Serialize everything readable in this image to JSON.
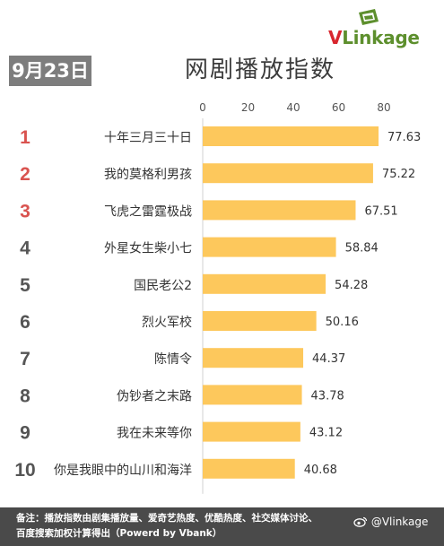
{
  "logo": {
    "text_v": "V",
    "text_rest": "Linkage",
    "mark_color": "#5d8f2d",
    "accent_color": "#d8262e"
  },
  "date": "9月23日",
  "title": "网剧播放指数",
  "chart_data": {
    "type": "bar",
    "orientation": "horizontal",
    "title": "网剧播放指数",
    "xlim": [
      0,
      80
    ],
    "ticks": [
      0,
      20,
      40,
      60,
      80
    ],
    "grid": false,
    "bar_color": "#fdc85c",
    "rank_colors": {
      "top3": "#d9534f",
      "others": "#555555"
    },
    "ranks": [
      1,
      2,
      3,
      4,
      5,
      6,
      7,
      8,
      9,
      10
    ],
    "categories": [
      "十年三月三十日",
      "我的莫格利男孩",
      "飞虎之雷霆极战",
      "外星女生柴小七",
      "国民老公2",
      "烈火军校",
      "陈情令",
      "伪钞者之末路",
      "我在未来等你",
      "你是我眼中的山川和海洋"
    ],
    "values": [
      77.63,
      75.22,
      67.51,
      58.84,
      54.28,
      50.16,
      44.37,
      43.78,
      43.12,
      40.68
    ],
    "value_labels": [
      "77.63",
      "75.22",
      "67.51",
      "58.84",
      "54.28",
      "50.16",
      "44.37",
      "43.78",
      "43.12",
      "40.68"
    ]
  },
  "note": {
    "line1": "备注：播放指数由剧集播放量、爱奇艺热度、优酷热度、社交媒体讨论、",
    "line2": "百度搜索加权计算得出（Powerd by Vbank）"
  },
  "watermark": "@Vlinkage"
}
